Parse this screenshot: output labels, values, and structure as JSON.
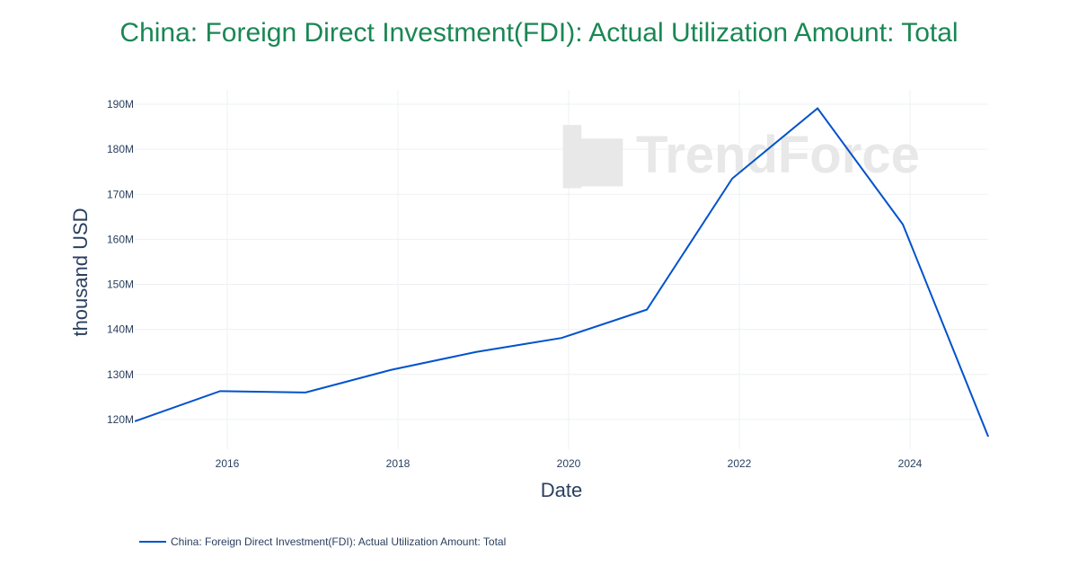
{
  "chart_data": {
    "type": "line",
    "title": "China: Foreign Direct Investment(FDI): Actual Utilization Amount: Total",
    "xlabel": "Date",
    "ylabel": "thousand USD",
    "x": [
      "2014-12",
      "2015-12",
      "2016-12",
      "2017-12",
      "2018-12",
      "2019-12",
      "2020-12",
      "2021-12",
      "2022-12",
      "2023-12",
      "2024-12"
    ],
    "series": [
      {
        "name": "China: Foreign Direct Investment(FDI): Actual Utilization Amount: Total",
        "values": [
          119.6,
          126.3,
          126.0,
          131.0,
          135.0,
          138.1,
          144.4,
          173.5,
          189.1,
          163.3,
          116.2
        ],
        "color": "#0052cc"
      }
    ],
    "value_unit": "M",
    "x_ticks": [
      "2016",
      "2018",
      "2020",
      "2022",
      "2024"
    ],
    "y_ticks": [
      "120M",
      "130M",
      "140M",
      "150M",
      "160M",
      "170M",
      "180M",
      "190M"
    ],
    "ylim": [
      113.4,
      193.2
    ],
    "grid": true,
    "legend_position": "bottom-left",
    "watermark": "TrendForce"
  }
}
